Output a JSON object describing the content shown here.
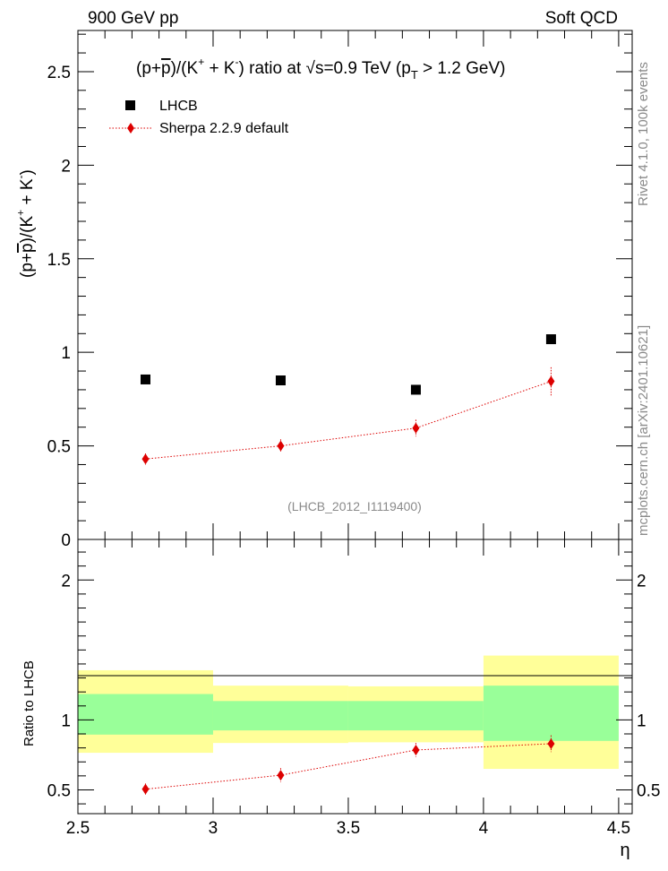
{
  "header": {
    "left": "900 GeV pp",
    "right": "Soft QCD"
  },
  "side_labels": {
    "rivet": "Rivet 4.1.0,  100k events",
    "mcplots": "mcplots.cern.ch [arXiv:2401.10621]"
  },
  "chart_data": [
    {
      "type": "scatter",
      "panel": "main",
      "title": "(p+p̄)/(K⁺ + K⁻) ratio at  √s=0.9 TeV (p_T > 1.2 GeV)",
      "title_parts": {
        "a": "(p+",
        "pbar": "p",
        "b": ")/(K",
        "plus": "+",
        "c": " + K",
        "minus": "-",
        "d": ") ratio at  ",
        "sqrt": "√",
        "s": "s=0.9 TeV (p",
        "T": "T",
        "e": " > 1.2 GeV)"
      },
      "ylabel": "(p+p̄)/(K⁺ + K⁻)",
      "ylabel_parts": {
        "a": "(p+",
        "pbar": "p",
        "b": ")/(K",
        "plus": "+",
        "c": " + K",
        "minus": "-",
        "d": ")"
      },
      "ylim": [
        0,
        2.72
      ],
      "xlim": [
        2.5,
        4.55
      ],
      "yticks": [
        {
          "v": 0,
          "l": "0"
        },
        {
          "v": 0.5,
          "l": "0.5"
        },
        {
          "v": 1,
          "l": "1"
        },
        {
          "v": 1.5,
          "l": "1.5"
        },
        {
          "v": 2,
          "l": "2"
        },
        {
          "v": 2.5,
          "l": "2.5"
        }
      ],
      "legend": [
        "LHCB",
        "Sherpa 2.2.9 default"
      ],
      "legend_position": "top-left",
      "watermark": "(LHCB_2012_I1119400)",
      "series": [
        {
          "name": "LHCB",
          "marker": "square",
          "color": "#000000",
          "x": [
            2.75,
            3.25,
            3.75,
            4.25
          ],
          "y": [
            0.855,
            0.85,
            0.8,
            1.07
          ]
        },
        {
          "name": "Sherpa 2.2.9 default",
          "marker": "diamond",
          "line": "dotted",
          "color": "#dd0000",
          "x": [
            2.75,
            3.25,
            3.75,
            4.25
          ],
          "y": [
            0.43,
            0.5,
            0.595,
            0.845
          ],
          "yerr": [
            0.03,
            0.035,
            0.045,
            0.075
          ]
        }
      ]
    },
    {
      "type": "scatter",
      "panel": "ratio",
      "ylabel": "Ratio to LHCB",
      "xlabel": "η",
      "ylim": [
        0.33,
        2.29
      ],
      "xlim": [
        2.5,
        4.55
      ],
      "xticks": [
        {
          "v": 2.5,
          "l": "2.5"
        },
        {
          "v": 3,
          "l": "3"
        },
        {
          "v": 3.5,
          "l": "3.5"
        },
        {
          "v": 4,
          "l": "4"
        },
        {
          "v": 4.5,
          "l": "4.5"
        }
      ],
      "yticks": [
        {
          "v": 0.5,
          "l": "0.5"
        },
        {
          "v": 1,
          "l": "1"
        },
        {
          "v": 2,
          "l": "2"
        }
      ],
      "bands": [
        {
          "x0": 2.5,
          "x1": 3.0,
          "yellow": [
            0.765,
            1.355
          ],
          "green": [
            0.895,
            1.185
          ]
        },
        {
          "x0": 3.0,
          "x1": 3.5,
          "yellow": [
            0.835,
            1.245
          ],
          "green": [
            0.925,
            1.135
          ]
        },
        {
          "x0": 3.5,
          "x1": 4.0,
          "yellow": [
            0.84,
            1.24
          ],
          "green": [
            0.925,
            1.135
          ]
        },
        {
          "x0": 4.0,
          "x1": 4.5,
          "yellow": [
            0.65,
            1.46
          ],
          "green": [
            0.85,
            1.245
          ]
        }
      ],
      "series": [
        {
          "name": "Sherpa 2.2.9 default",
          "marker": "diamond",
          "line": "dotted",
          "color": "#dd0000",
          "x": [
            2.75,
            3.25,
            3.75,
            4.25
          ],
          "y": [
            0.505,
            0.605,
            0.785,
            0.83
          ],
          "yerr": [
            0.04,
            0.05,
            0.05,
            0.06
          ]
        }
      ]
    }
  ]
}
